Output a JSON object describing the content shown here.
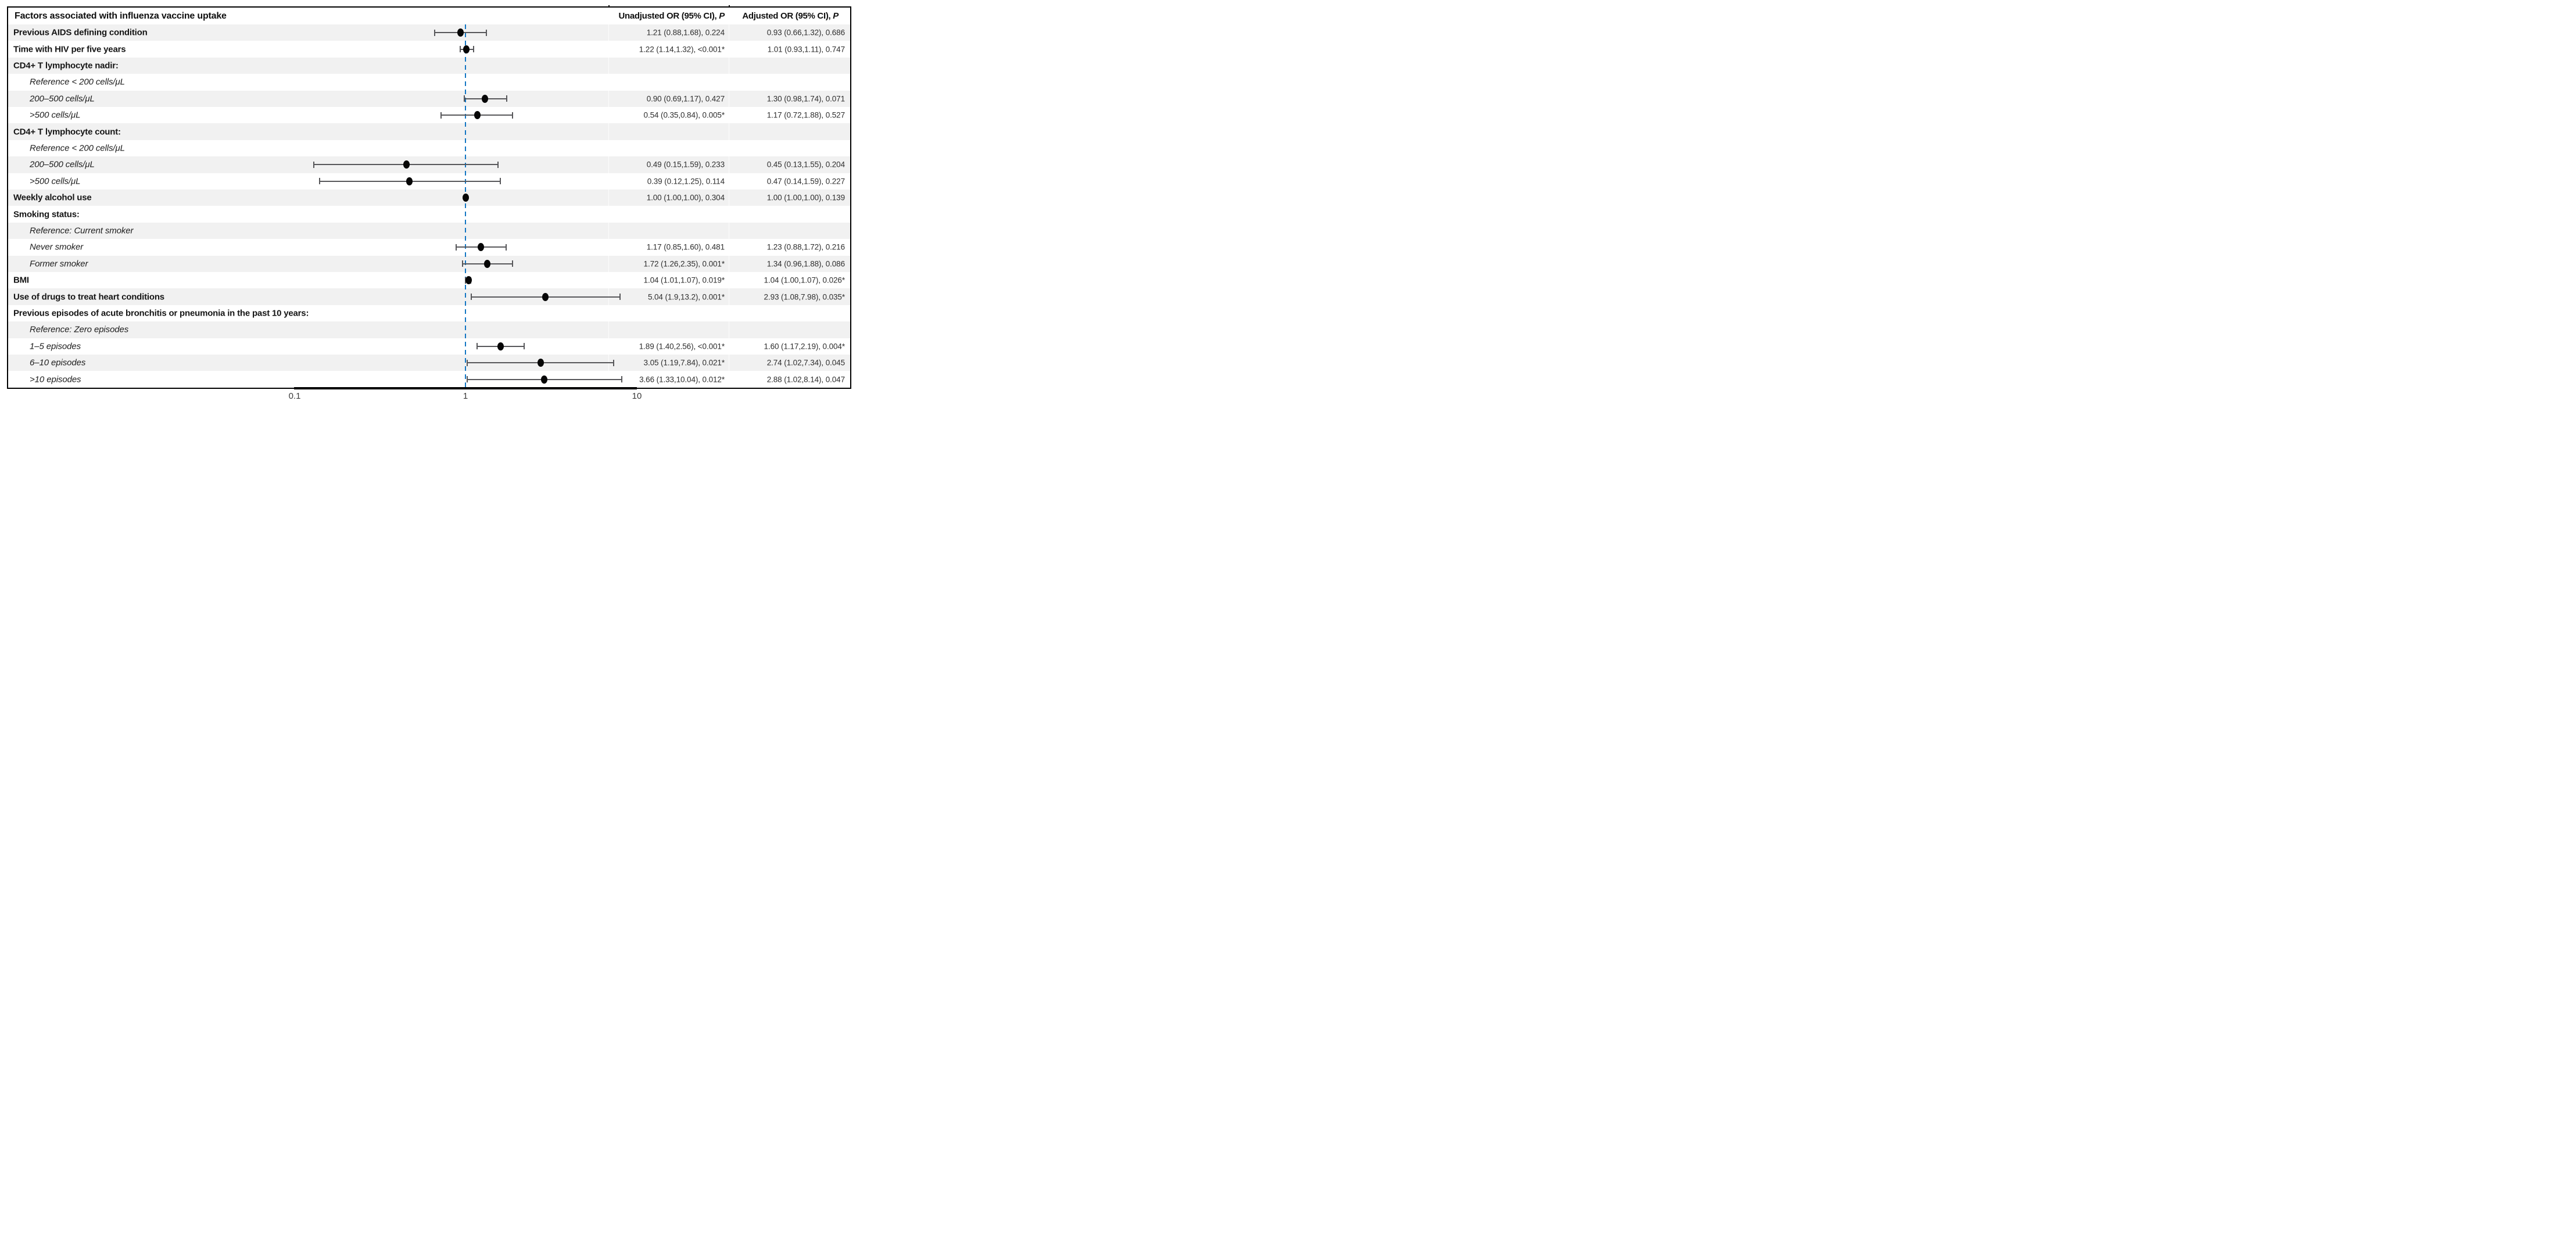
{
  "figure": {
    "title": "Factors associated with influenza vaccine uptake"
  },
  "columns": {
    "unadjusted": {
      "label": "Unadjusted OR (95% CI),",
      "p": "P"
    },
    "adjusted": {
      "label": "Adjusted OR (95% CI),",
      "p": "P"
    }
  },
  "axis": {
    "ticks": [
      "0.1",
      "1",
      "10"
    ],
    "scale": "log10",
    "reference": 1
  },
  "colors": {
    "reference_line": "#1276c3",
    "marker": "#060606",
    "ci_bar": "#57575a",
    "stripe": "#f1f1f1",
    "border": "#000000"
  },
  "chart_data": {
    "type": "scatter",
    "subtype": "forest-plot",
    "title": "Factors associated with influenza vaccine uptake",
    "x_scale": "log10",
    "x_ticks": [
      0.1,
      1,
      10
    ],
    "reference_line": 1,
    "plotted_series": "adjusted",
    "legend": "none",
    "rows": [
      {
        "label": "Previous AIDS defining condition",
        "style": "bold",
        "unadjusted_text": "1.21 (0.88,1.68), 0.224",
        "adjusted_text": "0.93 (0.66,1.32), 0.686",
        "unadjusted": {
          "or": 1.21,
          "lo": 0.88,
          "hi": 1.68,
          "p": "0.224"
        },
        "adjusted": {
          "or": 0.93,
          "lo": 0.66,
          "hi": 1.32,
          "p": "0.686"
        }
      },
      {
        "label": "Time with HIV per five years",
        "style": "bold",
        "unadjusted_text": "1.22 (1.14,1.32), <0.001*",
        "adjusted_text": "1.01 (0.93,1.11), 0.747",
        "unadjusted": {
          "or": 1.22,
          "lo": 1.14,
          "hi": 1.32,
          "p": "<0.001*"
        },
        "adjusted": {
          "or": 1.01,
          "lo": 0.93,
          "hi": 1.11,
          "p": "0.747"
        }
      },
      {
        "label": "CD4+ T lymphocyte nadir:",
        "style": "bold"
      },
      {
        "label": "Reference < 200 cells/μL",
        "style": "italic"
      },
      {
        "label": "200–500 cells/μL",
        "style": "italic",
        "unadjusted_text": "0.90 (0.69,1.17), 0.427",
        "adjusted_text": "1.30 (0.98,1.74), 0.071",
        "unadjusted": {
          "or": 0.9,
          "lo": 0.69,
          "hi": 1.17,
          "p": "0.427"
        },
        "adjusted": {
          "or": 1.3,
          "lo": 0.98,
          "hi": 1.74,
          "p": "0.071"
        }
      },
      {
        "label": ">500 cells/μL",
        "style": "italic",
        "unadjusted_text": "0.54 (0.35,0.84), 0.005*",
        "adjusted_text": "1.17 (0.72,1.88), 0.527",
        "unadjusted": {
          "or": 0.54,
          "lo": 0.35,
          "hi": 0.84,
          "p": "0.005*"
        },
        "adjusted": {
          "or": 1.17,
          "lo": 0.72,
          "hi": 1.88,
          "p": "0.527"
        }
      },
      {
        "label": "CD4+ T lymphocyte count:",
        "style": "bold"
      },
      {
        "label": "Reference < 200 cells/μL",
        "style": "italic"
      },
      {
        "label": "200–500 cells/μL",
        "style": "italic",
        "unadjusted_text": "0.49 (0.15,1.59), 0.233",
        "adjusted_text": "0.45 (0.13,1.55), 0.204",
        "unadjusted": {
          "or": 0.49,
          "lo": 0.15,
          "hi": 1.59,
          "p": "0.233"
        },
        "adjusted": {
          "or": 0.45,
          "lo": 0.13,
          "hi": 1.55,
          "p": "0.204"
        }
      },
      {
        "label": ">500 cells/μL",
        "style": "italic",
        "unadjusted_text": "0.39 (0.12,1.25), 0.114",
        "adjusted_text": "0.47 (0.14,1.59), 0.227",
        "unadjusted": {
          "or": 0.39,
          "lo": 0.12,
          "hi": 1.25,
          "p": "0.114"
        },
        "adjusted": {
          "or": 0.47,
          "lo": 0.14,
          "hi": 1.59,
          "p": "0.227"
        }
      },
      {
        "label": "Weekly alcohol use",
        "style": "bold",
        "unadjusted_text": "1.00 (1.00,1.00), 0.304",
        "adjusted_text": "1.00 (1.00,1.00), 0.139",
        "unadjusted": {
          "or": 1.0,
          "lo": 1.0,
          "hi": 1.0,
          "p": "0.304"
        },
        "adjusted": {
          "or": 1.0,
          "lo": 1.0,
          "hi": 1.0,
          "p": "0.139"
        }
      },
      {
        "label": "Smoking status:",
        "style": "bold"
      },
      {
        "label": "Reference: Current smoker",
        "style": "italic"
      },
      {
        "label": "Never smoker",
        "style": "italic",
        "unadjusted_text": "1.17 (0.85,1.60), 0.481",
        "adjusted_text": "1.23 (0.88,1.72), 0.216",
        "unadjusted": {
          "or": 1.17,
          "lo": 0.85,
          "hi": 1.6,
          "p": "0.481"
        },
        "adjusted": {
          "or": 1.23,
          "lo": 0.88,
          "hi": 1.72,
          "p": "0.216"
        }
      },
      {
        "label": "Former smoker",
        "style": "italic",
        "unadjusted_text": "1.72 (1.26,2.35), 0.001*",
        "adjusted_text": "1.34 (0.96,1.88), 0.086",
        "unadjusted": {
          "or": 1.72,
          "lo": 1.26,
          "hi": 2.35,
          "p": "0.001*"
        },
        "adjusted": {
          "or": 1.34,
          "lo": 0.96,
          "hi": 1.88,
          "p": "0.086"
        }
      },
      {
        "label": "BMI",
        "style": "bold",
        "unadjusted_text": "1.04 (1.01,1.07), 0.019*",
        "adjusted_text": "1.04 (1.00,1.07), 0.026*",
        "unadjusted": {
          "or": 1.04,
          "lo": 1.01,
          "hi": 1.07,
          "p": "0.019*"
        },
        "adjusted": {
          "or": 1.04,
          "lo": 1.0,
          "hi": 1.07,
          "p": "0.026*"
        }
      },
      {
        "label": "Use of drugs to treat heart conditions",
        "style": "bold",
        "unadjusted_text": "5.04 (1.9,13.2), 0.001*",
        "adjusted_text": "2.93 (1.08,7.98), 0.035*",
        "unadjusted": {
          "or": 5.04,
          "lo": 1.9,
          "hi": 13.2,
          "p": "0.001*"
        },
        "adjusted": {
          "or": 2.93,
          "lo": 1.08,
          "hi": 7.98,
          "p": "0.035*"
        }
      },
      {
        "label": "Previous episodes of acute bronchitis or pneumonia in the past 10 years:",
        "style": "bold"
      },
      {
        "label": "Reference: Zero episodes",
        "style": "italic"
      },
      {
        "label": "1–5 episodes",
        "style": "italic",
        "unadjusted_text": "1.89 (1.40,2.56), <0.001*",
        "adjusted_text": "1.60 (1.17,2.19), 0.004*",
        "unadjusted": {
          "or": 1.89,
          "lo": 1.4,
          "hi": 2.56,
          "p": "<0.001*"
        },
        "adjusted": {
          "or": 1.6,
          "lo": 1.17,
          "hi": 2.19,
          "p": "0.004*"
        }
      },
      {
        "label": "6–10 episodes",
        "style": "italic",
        "unadjusted_text": "3.05 (1.19,7.84), 0.021*",
        "adjusted_text": "2.74 (1.02,7.34), 0.045",
        "unadjusted": {
          "or": 3.05,
          "lo": 1.19,
          "hi": 7.84,
          "p": "0.021*"
        },
        "adjusted": {
          "or": 2.74,
          "lo": 1.02,
          "hi": 7.34,
          "p": "0.045"
        }
      },
      {
        "label": ">10 episodes",
        "style": "italic",
        "unadjusted_text": "3.66 (1.33,10.04), 0.012*",
        "adjusted_text": "2.88 (1.02,8.14), 0.047",
        "unadjusted": {
          "or": 3.66,
          "lo": 1.33,
          "hi": 10.04,
          "p": "0.012*"
        },
        "adjusted": {
          "or": 2.88,
          "lo": 1.02,
          "hi": 8.14,
          "p": "0.047"
        }
      }
    ]
  }
}
